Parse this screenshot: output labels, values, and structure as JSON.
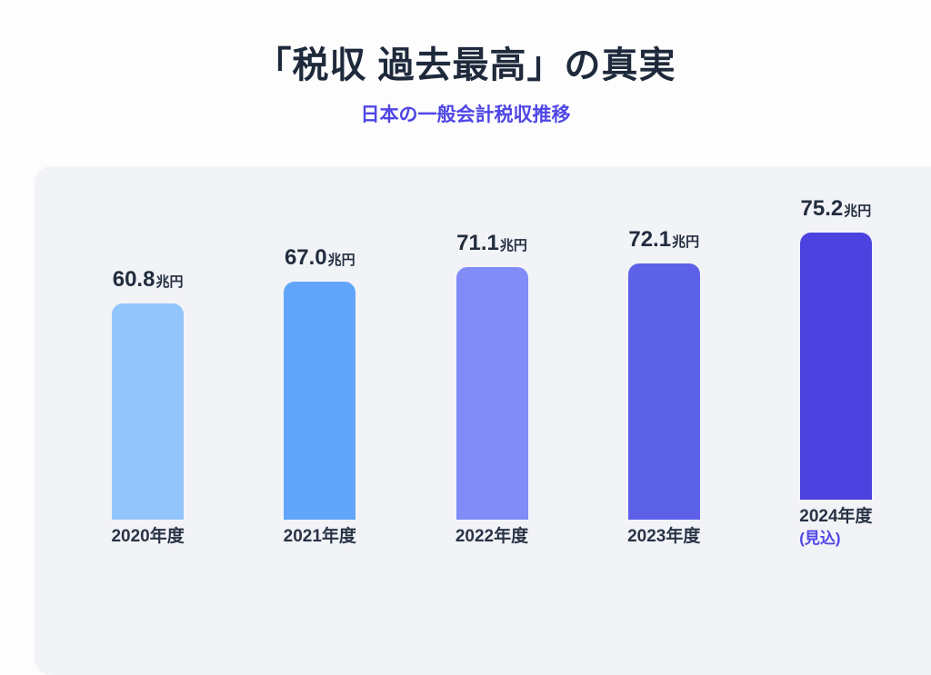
{
  "header": {
    "title": "「税収 過去最高」の真実",
    "subtitle": "日本の一般会計税収推移"
  },
  "chart_data": {
    "type": "bar",
    "orientation": "vertical",
    "title": "「税収 過去最高」の真実",
    "subtitle": "日本の一般会計税収推移",
    "unit": "兆円",
    "categories": [
      "2020年度",
      "2021年度",
      "2022年度",
      "2023年度",
      "2024年度"
    ],
    "values": [
      60.8,
      67.0,
      71.1,
      72.1,
      75.2
    ],
    "bars": [
      {
        "category": "2020年度",
        "value": 60.8,
        "value_label": "60.8",
        "note": "",
        "color": "#93c5fd"
      },
      {
        "category": "2021年度",
        "value": 67.0,
        "value_label": "67.0",
        "note": "",
        "color": "#60a5fa"
      },
      {
        "category": "2022年度",
        "value": 71.1,
        "value_label": "71.1",
        "note": "",
        "color": "#818cf8"
      },
      {
        "category": "2023年度",
        "value": 72.1,
        "value_label": "72.1",
        "note": "",
        "color": "#5d61e8"
      },
      {
        "category": "2024年度",
        "value": 75.2,
        "value_label": "75.2",
        "note": "(見込)",
        "color": "#4c42e0"
      }
    ],
    "ylim": [
      0,
      80
    ],
    "grid": false,
    "legend": false,
    "value_labels_position": "above-bar",
    "axis": "category-only"
  },
  "colors": {
    "accent": "#4f46e5",
    "title_text": "#1e2a3b",
    "label_text": "#222d3f",
    "year_text": "#2a3447",
    "card_bg": "#f2f3f7",
    "page_bg": "#fdfdfe"
  }
}
